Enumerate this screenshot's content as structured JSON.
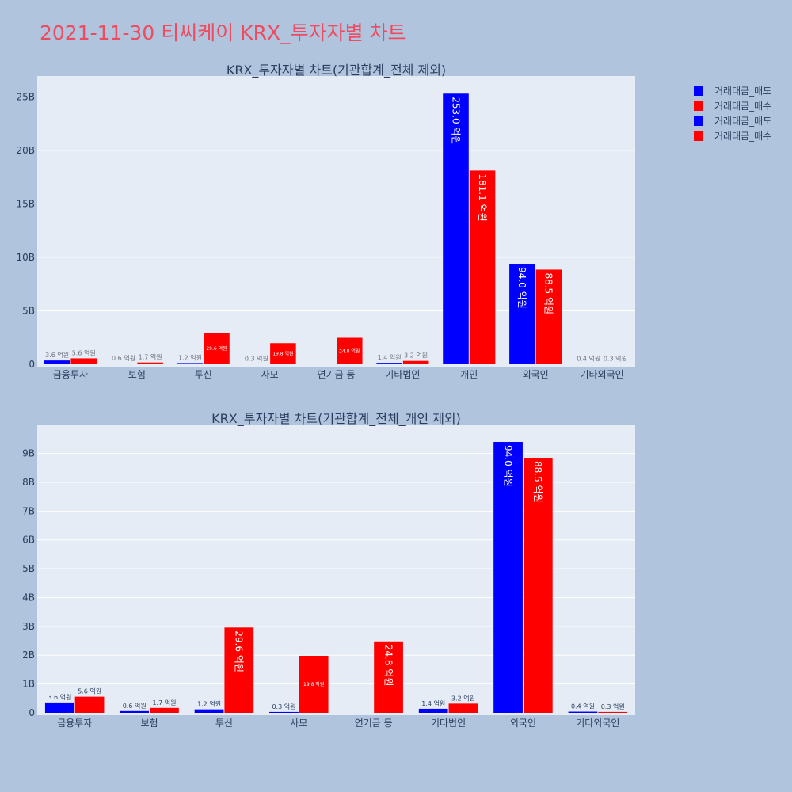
{
  "page_title": "2021-11-30 티씨케이 KRX_투자자별 차트",
  "colors": {
    "sell": "#0000ff",
    "buy": "#ff0000",
    "plot_bg": "#e5ecf6",
    "paper_bg": "#b0c4de"
  },
  "legend": [
    {
      "label": "거래대금_매도",
      "color": "#0000ff"
    },
    {
      "label": "거래대금_매수",
      "color": "#ff0000"
    },
    {
      "label": "거래대금_매도",
      "color": "#0000ff"
    },
    {
      "label": "거래대금_매수",
      "color": "#ff0000"
    }
  ],
  "chart_data": [
    {
      "type": "bar",
      "title": "KRX_투자자별 차트(기관합계_전체 제외)",
      "categories": [
        "금융투자",
        "보험",
        "투신",
        "사모",
        "연기금 등",
        "기타법인",
        "개인",
        "외국인",
        "기타외국인"
      ],
      "series": [
        {
          "name": "거래대금_매도",
          "values": [
            360000000,
            60000000,
            120000000,
            30000000,
            0,
            140000000,
            25300000000,
            9400000000,
            40000000
          ],
          "labels": [
            "3.6 억원",
            "0.6 억원",
            "1.2 억원",
            "0.3 억원",
            "",
            "1.4 억원",
            "253.0 억원",
            "94.0 억원",
            "0.4 억원"
          ]
        },
        {
          "name": "거래대금_매수",
          "values": [
            560000000,
            170000000,
            2960000000,
            1980000000,
            2480000000,
            320000000,
            18110000000,
            8850000000,
            30000000
          ],
          "labels": [
            "5.6 억원",
            "1.7 억원",
            "29.6 억원",
            "19.8 억원",
            "24.8 억원",
            "3.2 억원",
            "181.1 억원",
            "88.5 억원",
            "0.3 억원"
          ]
        }
      ],
      "ylim": [
        0,
        26800000000
      ],
      "yticks": [
        0,
        5000000000,
        10000000000,
        15000000000,
        20000000000,
        25000000000
      ],
      "ytick_labels": [
        "0",
        "5B",
        "10B",
        "15B",
        "20B",
        "25B"
      ],
      "grid": true
    },
    {
      "type": "bar",
      "title": "KRX_투자자별 차트(기관합계_전체_개인 제외)",
      "categories": [
        "금융투자",
        "보험",
        "투신",
        "사모",
        "연기금 등",
        "기타법인",
        "외국인",
        "기타외국인"
      ],
      "series": [
        {
          "name": "거래대금_매도",
          "values": [
            360000000,
            60000000,
            120000000,
            30000000,
            0,
            140000000,
            9400000000,
            40000000
          ],
          "labels": [
            "3.6 억원",
            "0.6 억원",
            "1.2 억원",
            "0.3 억원",
            "",
            "1.4 억원",
            "94.0 억원",
            "0.4 억원"
          ]
        },
        {
          "name": "거래대금_매수",
          "values": [
            560000000,
            170000000,
            2960000000,
            1980000000,
            2480000000,
            320000000,
            8850000000,
            30000000
          ],
          "labels": [
            "5.6 억원",
            "1.7 억원",
            "29.6 억원",
            "19.8 억원",
            "24.8 억원",
            "3.2 억원",
            "88.5 억원",
            "0.3 억원"
          ]
        }
      ],
      "ylim": [
        0,
        9950000000
      ],
      "yticks": [
        0,
        1000000000,
        2000000000,
        3000000000,
        4000000000,
        5000000000,
        6000000000,
        7000000000,
        8000000000,
        9000000000
      ],
      "ytick_labels": [
        "0",
        "1B",
        "2B",
        "3B",
        "4B",
        "5B",
        "6B",
        "7B",
        "8B",
        "9B"
      ],
      "grid": true
    }
  ]
}
